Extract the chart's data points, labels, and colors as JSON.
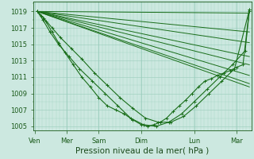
{
  "bg_color": "#cce8e0",
  "grid_color": "#99ccbb",
  "line_color": "#1a6e1a",
  "xlabel": "Pression niveau de la mer( hPa )",
  "xlabel_fontsize": 7.5,
  "tick_labels": [
    "Ven",
    "Mer",
    "Sam",
    "Dim",
    "Lun",
    "Mar"
  ],
  "tick_positions": [
    0,
    0.75,
    1.5,
    2.5,
    3.75,
    4.75
  ],
  "xlim": [
    -0.05,
    5.1
  ],
  "ylim": [
    1004.5,
    1020.2
  ],
  "yticks": [
    1005,
    1007,
    1009,
    1011,
    1013,
    1015,
    1017,
    1019
  ],
  "straight_lines": [
    {
      "x0": 0.05,
      "y0": 1019.0,
      "x1": 5.05,
      "y1": 1018.8
    },
    {
      "x0": 0.05,
      "y0": 1019.0,
      "x1": 5.05,
      "y1": 1016.5
    },
    {
      "x0": 0.05,
      "y0": 1019.0,
      "x1": 5.05,
      "y1": 1015.2
    },
    {
      "x0": 0.05,
      "y0": 1019.0,
      "x1": 5.05,
      "y1": 1013.5
    },
    {
      "x0": 0.05,
      "y0": 1019.0,
      "x1": 5.05,
      "y1": 1012.5
    },
    {
      "x0": 0.05,
      "y0": 1019.0,
      "x1": 5.05,
      "y1": 1011.2
    },
    {
      "x0": 0.05,
      "y0": 1019.0,
      "x1": 5.05,
      "y1": 1010.2
    },
    {
      "x0": 0.05,
      "y0": 1019.0,
      "x1": 5.05,
      "y1": 1009.8
    }
  ],
  "detailed_series": [
    {
      "x": [
        0.05,
        0.15,
        0.25,
        0.4,
        0.55,
        0.7,
        0.9,
        1.1,
        1.3,
        1.5,
        1.7,
        1.9,
        2.1,
        2.3,
        2.5,
        2.65,
        2.8,
        2.95,
        3.1,
        3.25,
        3.4,
        3.55,
        3.7,
        3.85,
        4.0,
        4.15,
        4.3,
        4.45,
        4.6,
        4.75,
        4.9,
        5.05
      ],
      "y": [
        1019.0,
        1018.5,
        1017.8,
        1016.5,
        1015.2,
        1014.0,
        1012.5,
        1011.0,
        1009.8,
        1008.5,
        1007.5,
        1007.0,
        1006.5,
        1005.8,
        1005.2,
        1005.0,
        1005.2,
        1005.5,
        1006.0,
        1006.8,
        1007.5,
        1008.2,
        1009.0,
        1009.8,
        1010.5,
        1010.8,
        1011.2,
        1011.5,
        1011.8,
        1012.2,
        1012.5,
        1019.2
      ],
      "markers": true
    },
    {
      "x": [
        0.05,
        0.2,
        0.4,
        0.6,
        0.85,
        1.1,
        1.4,
        1.7,
        2.0,
        2.3,
        2.6,
        2.9,
        3.2,
        3.5,
        3.8,
        4.1,
        4.4,
        4.7,
        5.05
      ],
      "y": [
        1019.0,
        1018.2,
        1017.0,
        1015.8,
        1014.5,
        1013.2,
        1011.5,
        1010.0,
        1008.5,
        1007.2,
        1006.0,
        1005.5,
        1005.5,
        1006.2,
        1007.5,
        1009.0,
        1010.5,
        1012.0,
        1019.2
      ],
      "markers": true
    },
    {
      "x": [
        0.05,
        0.18,
        0.35,
        0.55,
        0.8,
        1.05,
        1.35,
        1.65,
        1.95,
        2.25,
        2.55,
        2.85,
        3.15,
        3.45,
        3.75,
        4.05,
        4.35,
        4.65,
        4.95,
        5.05
      ],
      "y": [
        1019.0,
        1018.0,
        1016.5,
        1015.0,
        1013.5,
        1012.0,
        1010.5,
        1009.0,
        1007.5,
        1006.0,
        1005.2,
        1005.0,
        1005.5,
        1006.5,
        1008.0,
        1009.5,
        1011.0,
        1012.5,
        1014.2,
        1019.0
      ],
      "markers": true
    }
  ]
}
